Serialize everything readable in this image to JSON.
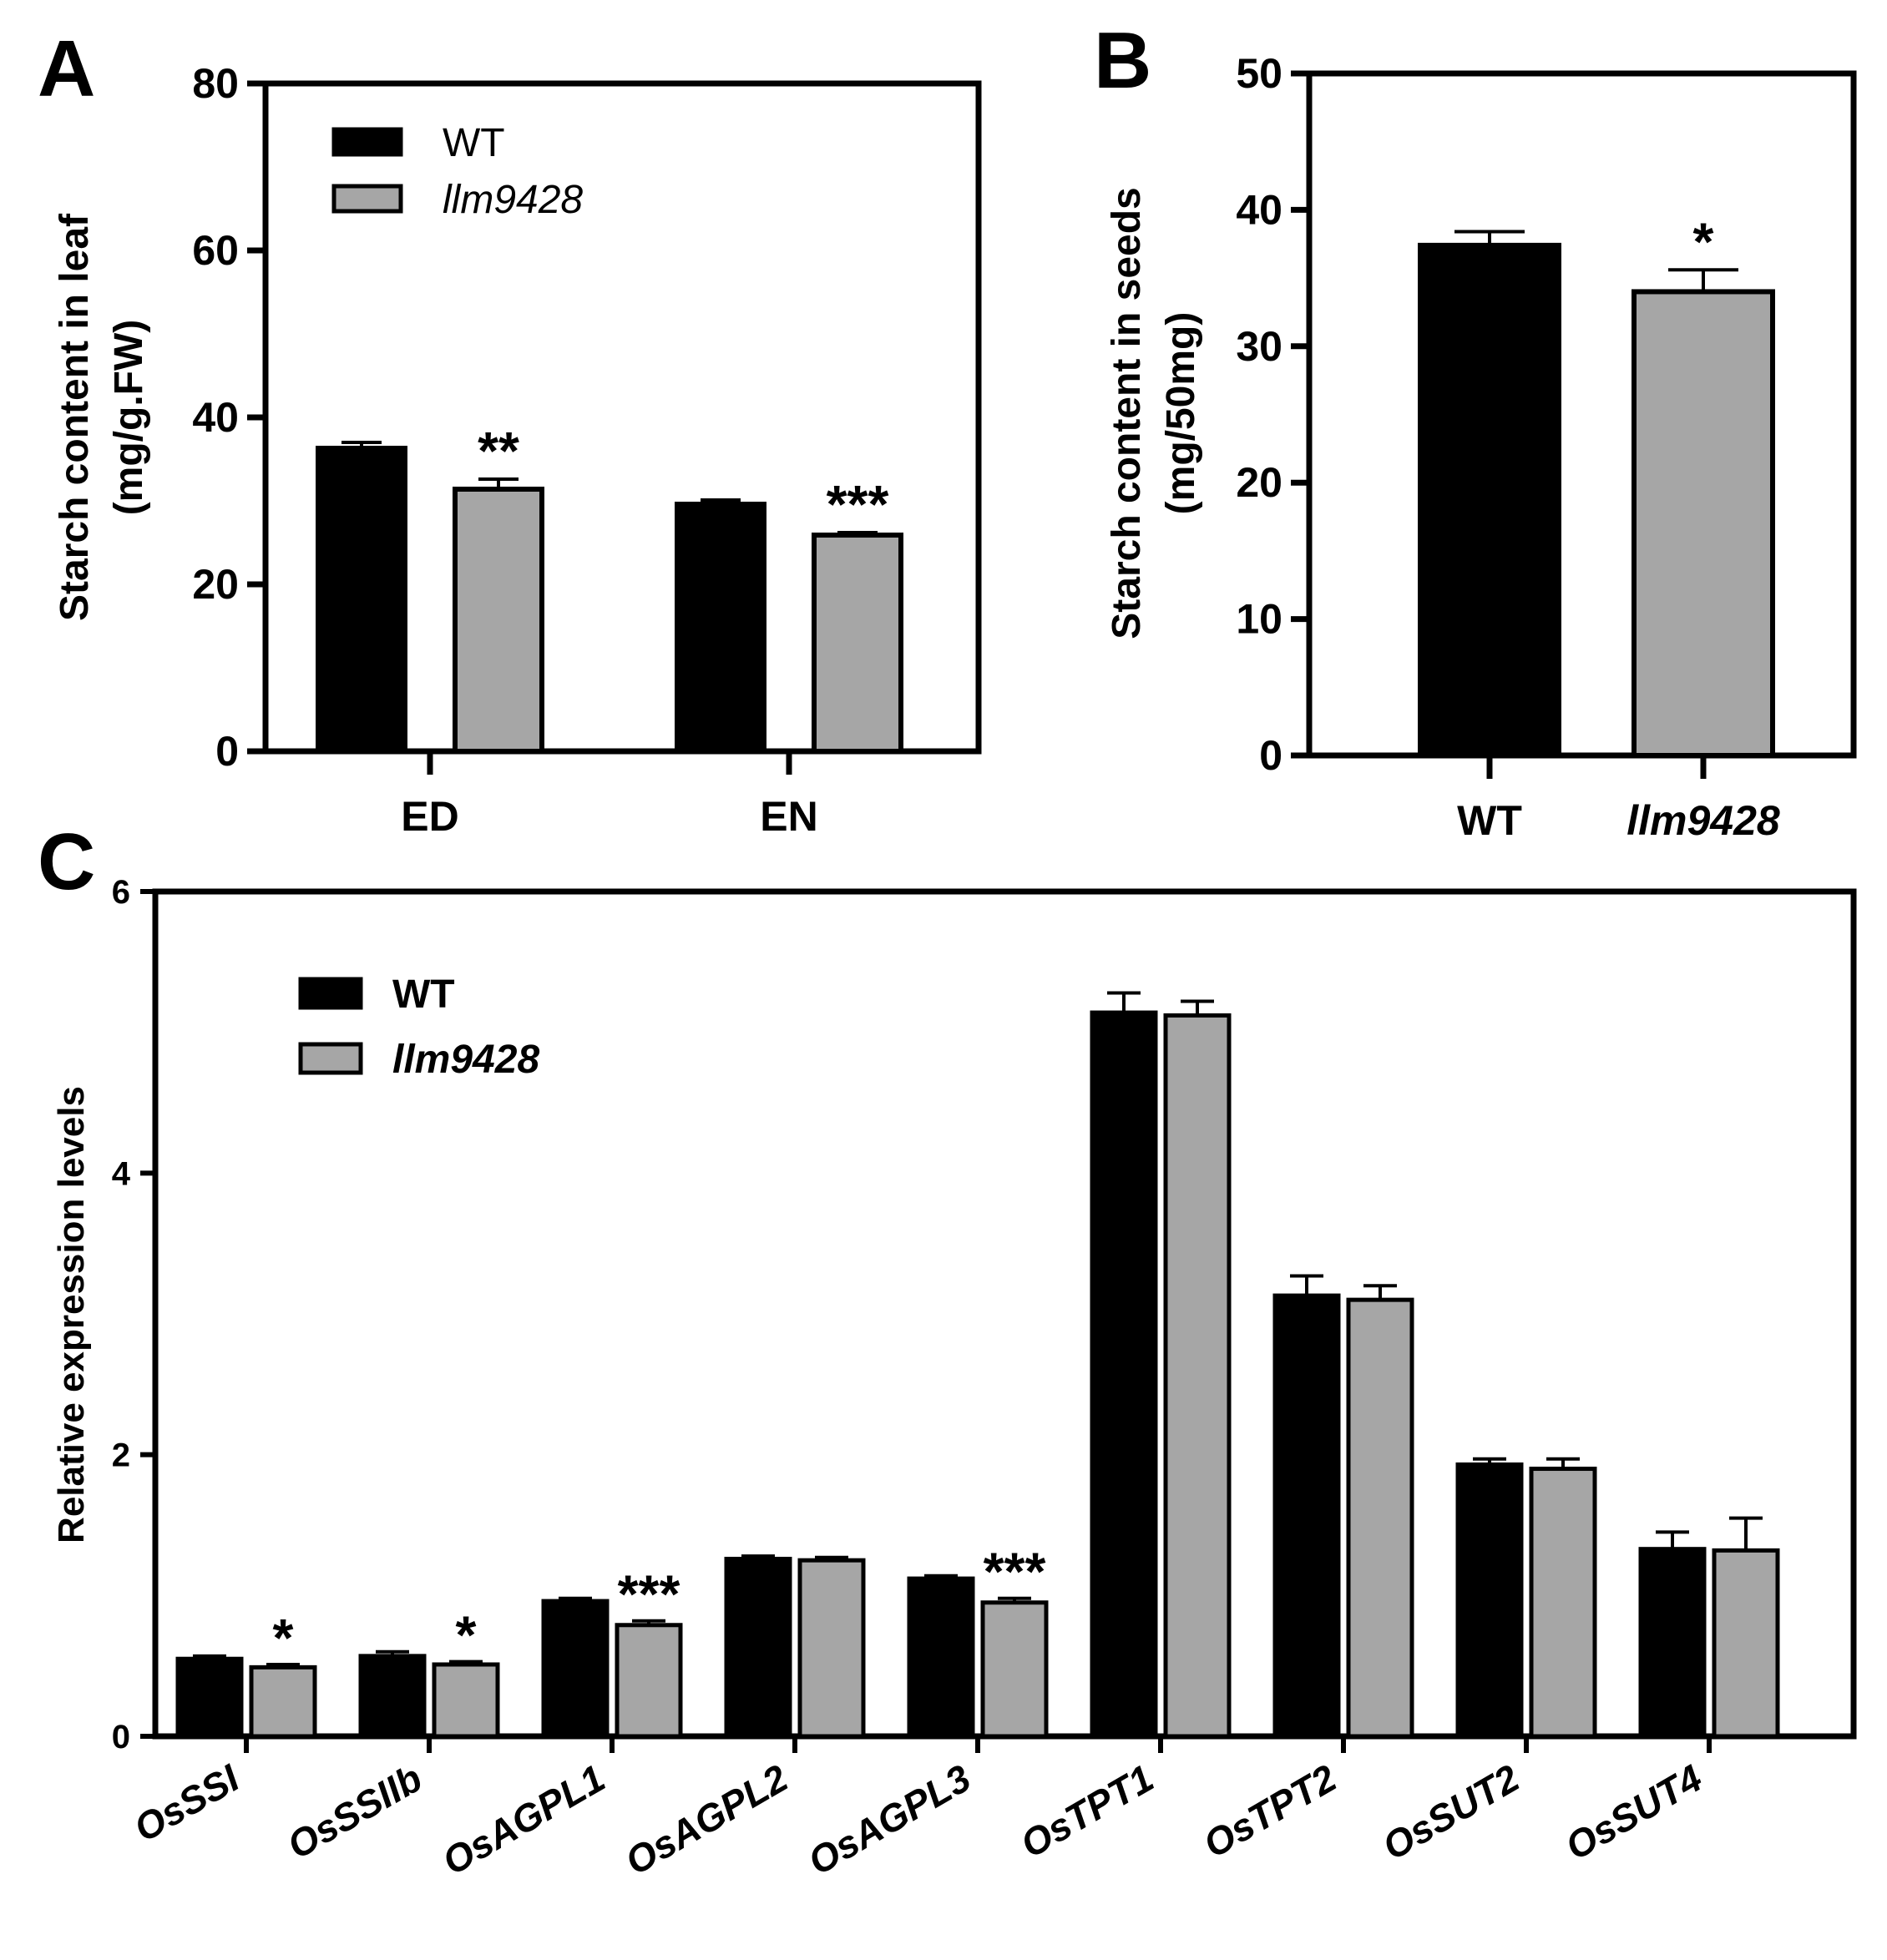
{
  "colors": {
    "wt": "#000000",
    "mutant": "#a6a6a6",
    "axis": "#000000"
  },
  "chart_data": [
    {
      "panel": "A",
      "type": "bar",
      "title": "",
      "xlabel": "",
      "ylabel": [
        "Starch content in leaf",
        "(mg/g.FW)"
      ],
      "ylim": [
        0,
        80
      ],
      "yticks": [
        "0",
        "20",
        "40",
        "60",
        "80"
      ],
      "categories": [
        "ED",
        "EN"
      ],
      "series": [
        {
          "name": "WT",
          "values": [
            36.3,
            29.6
          ],
          "errors": [
            0.7,
            0.5
          ]
        },
        {
          "name": "llm9428",
          "values": [
            31.4,
            25.9
          ],
          "errors": [
            1.2,
            0.3
          ]
        }
      ],
      "significance": [
        "**",
        "***"
      ],
      "legend": [
        "WT",
        "llm9428"
      ]
    },
    {
      "panel": "B",
      "type": "bar",
      "title": "",
      "xlabel": "",
      "ylabel": [
        "Starch content in seeds",
        "(mg/50mg)"
      ],
      "ylim": [
        0,
        50
      ],
      "yticks": [
        "0",
        "10",
        "20",
        "30",
        "40",
        "50"
      ],
      "categories": [
        "WT",
        "llm9428"
      ],
      "values": [
        37.4,
        34.0
      ],
      "errors": [
        1.0,
        1.6
      ],
      "significance": [
        "",
        "*"
      ]
    },
    {
      "panel": "C",
      "type": "bar",
      "title": "",
      "xlabel": "",
      "ylabel": "Relative expression levels",
      "ylim": [
        0,
        6
      ],
      "yticks": [
        "0",
        "2",
        "4",
        "6"
      ],
      "categories": [
        "OsSSI",
        "OsSSIIb",
        "OsAGPL1",
        "OsAGPL2",
        "OsAGPL3",
        "OsTPT1",
        "OsTPT2",
        "OsSUT2",
        "OsSUT4"
      ],
      "series": [
        {
          "name": "WT",
          "values": [
            0.55,
            0.57,
            0.96,
            1.26,
            1.12,
            5.14,
            3.13,
            1.93,
            1.33
          ],
          "errors": [
            0.02,
            0.03,
            0.02,
            0.02,
            0.02,
            0.14,
            0.14,
            0.04,
            0.12
          ]
        },
        {
          "name": "llm9428",
          "values": [
            0.49,
            0.51,
            0.79,
            1.25,
            0.95,
            5.12,
            3.1,
            1.9,
            1.32
          ],
          "errors": [
            0.02,
            0.02,
            0.03,
            0.02,
            0.03,
            0.1,
            0.1,
            0.07,
            0.23
          ]
        }
      ],
      "significance": [
        "*",
        "*",
        "***",
        "",
        "***",
        "",
        "",
        "",
        ""
      ],
      "legend": [
        "WT",
        "llm9428"
      ]
    }
  ]
}
